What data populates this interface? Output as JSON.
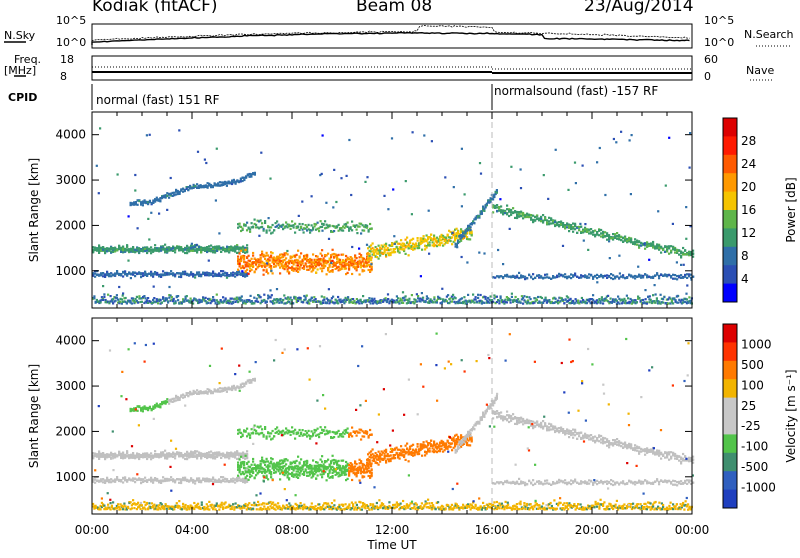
{
  "header": {
    "station": "Kodiak (fitACF)",
    "beam": "Beam 08",
    "date": "23/Aug/2014"
  },
  "panels": {
    "nsky": {
      "label": "N.Sky",
      "tick_top": "10^5",
      "tick_bottom": "10^0"
    },
    "nsearch": {
      "label": "N.Search",
      "tick_top": "10^5",
      "tick_bottom": "10^0"
    },
    "freq": {
      "label_line1": "Freq.",
      "label_line2": "[MHz]",
      "tick_top": "18",
      "tick_bottom": "8"
    },
    "nave": {
      "label": "Nave",
      "tick_top": "60",
      "tick_bottom": "0"
    },
    "cpid": {
      "label": "CPID",
      "segment1": "normal (fast) 151 RF",
      "segment2": "normalsound (fast) -157 RF"
    }
  },
  "colors": {
    "power_scale": [
      "#0000ff",
      "#2b4fb4",
      "#2f6fa8",
      "#3a9a6c",
      "#5fb54a",
      "#f5c400",
      "#ff9900",
      "#ff5a00",
      "#ff1a00",
      "#dd0000"
    ],
    "velocity_scale": [
      "#1f3fbf",
      "#2f5fbf",
      "#3f8f6f",
      "#52c44a",
      "#c8c8c8",
      "#c8c8c8",
      "#f2b400",
      "#ff7a00",
      "#ff3300",
      "#dd0000"
    ],
    "ground_scatter": "#c0c0c0"
  },
  "chart_data": [
    {
      "type": "heatmap",
      "title": "Power",
      "xlabel": "Time UT",
      "ylabel": "Slant Range [km]",
      "x_ticks": [
        "00:00",
        "04:00",
        "08:00",
        "12:00",
        "16:00",
        "20:00",
        "00:00"
      ],
      "x_range_hours": [
        0,
        24
      ],
      "y_ticks": [
        1000,
        2000,
        3000,
        4000
      ],
      "ylim": [
        180,
        4500
      ],
      "colorbar": {
        "label": "Power [dB]",
        "ticks": [
          4,
          8,
          12,
          16,
          20,
          24,
          28
        ]
      },
      "features": [
        {
          "band": "main scatter band",
          "t_start": 0,
          "t_end": 6,
          "range_km": 1500,
          "power_db": 12
        },
        {
          "band": "lower band",
          "t_start": 0,
          "t_end": 6,
          "range_km": 950,
          "power_db": 8
        },
        {
          "band": "strong echoes",
          "t_start": 6,
          "t_end": 11,
          "range_km": 1300,
          "power_db": 26
        },
        {
          "band": "upper arc",
          "t_start": 2,
          "t_end": 7,
          "range_km": 2700,
          "power_db": 8
        },
        {
          "band": "post-16 UT band",
          "t_start": 16,
          "t_end": 24,
          "range_km": 1500,
          "power_db": 12
        },
        {
          "band": "near-range noise",
          "t_start": 0,
          "t_end": 24,
          "range_km": 300,
          "power_db": 6
        }
      ]
    },
    {
      "type": "heatmap",
      "title": "Velocity",
      "xlabel": "Time UT",
      "ylabel": "Slant Range [km]",
      "x_ticks": [
        "00:00",
        "04:00",
        "08:00",
        "12:00",
        "16:00",
        "20:00",
        "00:00"
      ],
      "x_range_hours": [
        0,
        24
      ],
      "y_ticks": [
        1000,
        2000,
        3000,
        4000
      ],
      "ylim": [
        180,
        4500
      ],
      "colorbar": {
        "label": "Velocity [m s^-1]",
        "ticks": [
          1000,
          500,
          100,
          25,
          -25,
          -100,
          -500,
          -1000
        ]
      },
      "features": [
        {
          "band": "ground scatter",
          "t_start": 0,
          "t_end": 24,
          "range_km": 1500,
          "velocity_ms": 0
        },
        {
          "band": "positive flow",
          "t_start": 6,
          "t_end": 10,
          "range_km": 1200,
          "velocity_ms": 150
        },
        {
          "band": "negative flow",
          "t_start": 10,
          "t_end": 15,
          "range_km": 1400,
          "velocity_ms": -250
        },
        {
          "band": "upper positive",
          "t_start": 1.5,
          "t_end": 3,
          "range_km": 2600,
          "velocity_ms": 150
        }
      ]
    }
  ],
  "colorbars": {
    "power": {
      "label": "Power [dB]",
      "ticks": [
        "28",
        "24",
        "20",
        "16",
        "12",
        "8",
        "4"
      ]
    },
    "velocity": {
      "label": "Velocity [m s⁻¹]",
      "ticks": [
        "1000",
        "500",
        "100",
        "25",
        "-25",
        "-100",
        "-500",
        "-1000"
      ]
    }
  },
  "axes": {
    "ylabel": "Slant Range [km]",
    "y_ticks": [
      "1000",
      "2000",
      "3000",
      "4000"
    ],
    "x_ticks": [
      "00:00",
      "04:00",
      "08:00",
      "12:00",
      "16:00",
      "20:00",
      "00:00"
    ],
    "xlabel": "Time UT"
  }
}
